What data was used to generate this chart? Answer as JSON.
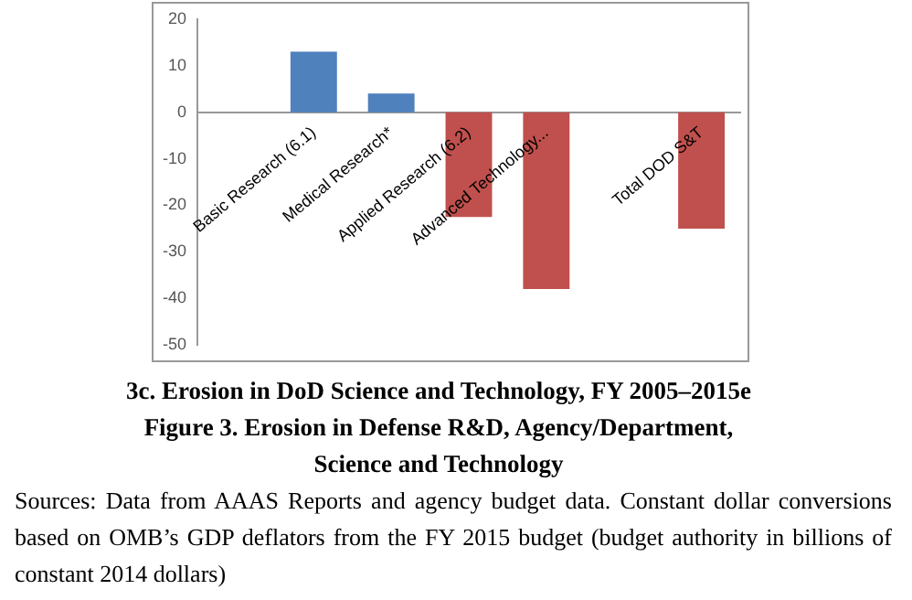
{
  "chart_data": {
    "type": "bar",
    "title": "3c. Erosion in DoD Science and Technology, FY 2005–2015e",
    "subtitle": "Figure 3. Erosion in Defense R&D, Agency/Department, Science and Technology",
    "categories": [
      null,
      "Basic Research (6.1)",
      "Medical Research*",
      "Applied Research (6.2)",
      "Advanced Technology...",
      null,
      "Total DOD S&T"
    ],
    "values": [
      null,
      13,
      4,
      -22.5,
      -38,
      null,
      -25
    ],
    "colors": [
      "#4f81bd",
      "#4f81bd",
      "#4f81bd",
      "#c0504d",
      "#c0504d",
      "#c0504d",
      "#c0504d"
    ],
    "ylim": [
      -50,
      20
    ],
    "yticks": [
      -50,
      -40,
      -30,
      -20,
      -10,
      0,
      10,
      20
    ],
    "grid": false,
    "legend": false,
    "annotations": [
      "Sources: Data from AAAS Reports and agency budget data. Constant dollar conversions based on OMB’s GDP deflators from the FY 2015 budget (budget authority in billions of constant 2014 dollars)"
    ]
  }
}
